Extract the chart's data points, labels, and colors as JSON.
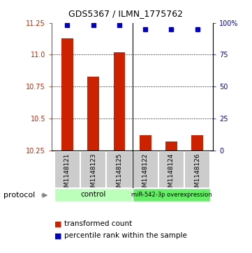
{
  "title": "GDS5367 / ILMN_1775762",
  "samples": [
    "GSM1148121",
    "GSM1148123",
    "GSM1148125",
    "GSM1148122",
    "GSM1148124",
    "GSM1148126"
  ],
  "transformed_counts": [
    11.13,
    10.83,
    11.02,
    10.37,
    10.32,
    10.37
  ],
  "percentile_ranks": [
    98,
    98,
    98,
    95,
    95,
    95
  ],
  "y_min": 10.25,
  "y_max": 11.25,
  "y_ticks": [
    10.25,
    10.5,
    10.75,
    11.0,
    11.25
  ],
  "y2_ticks": [
    0,
    25,
    50,
    75,
    100
  ],
  "bar_color": "#cc2200",
  "dot_color": "#0000cc",
  "bar_width": 0.45,
  "groups": [
    {
      "label": "control",
      "color": "#bbffbb"
    },
    {
      "label": "miR-542-3p overexpression",
      "color": "#66ee66"
    }
  ],
  "protocol_label": "protocol",
  "legend_bar_label": "transformed count",
  "legend_dot_label": "percentile rank within the sample",
  "background_color": "#ffffff",
  "label_area_color": "#cccccc",
  "fig_width": 3.61,
  "fig_height": 3.63
}
